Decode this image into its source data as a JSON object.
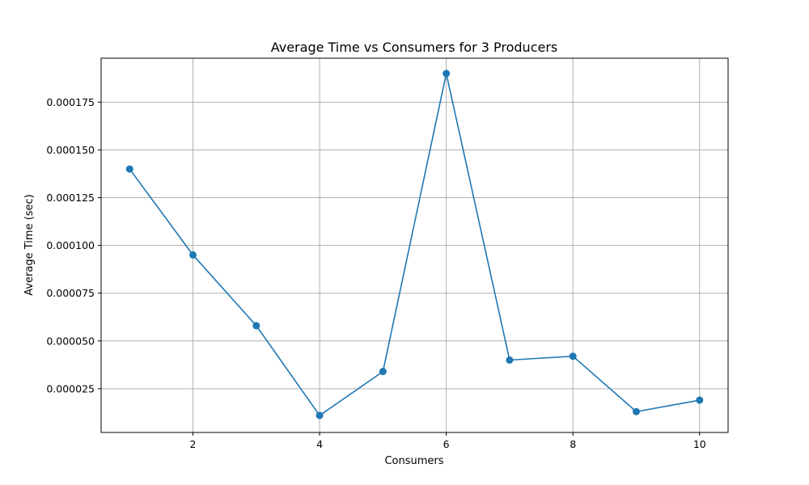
{
  "chart_data": {
    "type": "line",
    "title": "Average Time vs Consumers for 3 Producers",
    "xlabel": "Consumers",
    "ylabel": "Average Time (sec)",
    "x": [
      1,
      2,
      3,
      4,
      5,
      6,
      7,
      8,
      9,
      10
    ],
    "series": [
      {
        "values": [
          0.00014,
          9.5e-05,
          5.8e-05,
          1.1e-05,
          3.4e-05,
          0.00019,
          4e-05,
          4.2e-05,
          1.3e-05,
          1.9e-05
        ]
      }
    ],
    "xlim": [
      0.55,
      10.45
    ],
    "ylim": [
      2.1e-06,
      0.000198
    ],
    "xticks": [
      2,
      4,
      6,
      8,
      10
    ],
    "xtick_labels": [
      "2",
      "4",
      "6",
      "8",
      "10"
    ],
    "yticks": [
      2.5e-05,
      5e-05,
      7.5e-05,
      0.0001,
      0.000125,
      0.00015,
      0.000175
    ],
    "ytick_labels": [
      "0.000025",
      "0.000050",
      "0.000075",
      "0.000100",
      "0.000125",
      "0.000150",
      "0.000175"
    ],
    "grid": true,
    "color": "#1f77b4",
    "marker": "circle"
  }
}
